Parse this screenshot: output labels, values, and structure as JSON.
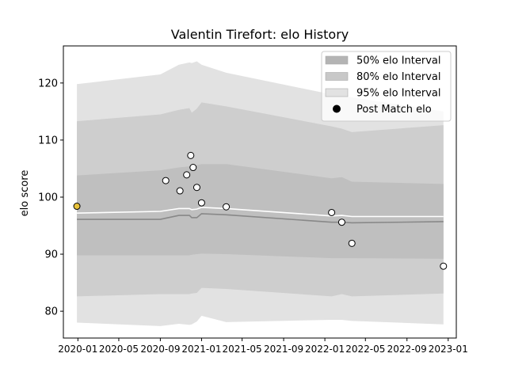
{
  "chart_data": {
    "type": "area",
    "title": "Valentin Tirefort: elo History",
    "xlabel": "",
    "ylabel": "elo score",
    "x_axis_type": "date",
    "xlim": [
      "2019-11-19",
      "2023-01-25"
    ],
    "ylim": [
      75.3,
      126.5
    ],
    "x_ticks": [
      "2020-01",
      "2020-05",
      "2020-09",
      "2021-01",
      "2021-05",
      "2021-09",
      "2022-01",
      "2022-05",
      "2022-09",
      "2023-01"
    ],
    "x_tick_dates": [
      "2020-01-01",
      "2020-05-01",
      "2020-09-01",
      "2021-01-01",
      "2021-05-01",
      "2021-09-01",
      "2022-01-01",
      "2022-05-01",
      "2022-09-01",
      "2023-01-01"
    ],
    "y_ticks": [
      80,
      90,
      100,
      110,
      120
    ],
    "grid": false,
    "legend_position": "top-right",
    "legend": [
      {
        "label": "50% elo Interval",
        "kind": "patch",
        "color": "#b4b4b4"
      },
      {
        "label": "80% elo Interval",
        "kind": "patch",
        "color": "#c8c8c8"
      },
      {
        "label": "95% elo Interval",
        "kind": "patch",
        "color": "#e2e2e2"
      },
      {
        "label": "Post Match elo",
        "kind": "marker",
        "color": "#000000"
      }
    ],
    "colors": {
      "band95": "#e2e2e2",
      "band80": "#cecece",
      "band50": "#bfbfbf",
      "mean_line": "#ffffff",
      "median_line": "#888888",
      "point_fill": "#ffffff",
      "first_point_fill": "#e8c23a",
      "point_edge": "#000000"
    },
    "bands": {
      "dates": [
        "2019-12-29",
        "2020-09-01",
        "2020-10-26",
        "2020-11-26",
        "2020-12-03",
        "2020-12-18",
        "2021-01-01",
        "2021-03-15",
        "2022-01-21",
        "2022-02-20",
        "2022-03-22",
        "2022-12-18"
      ],
      "q95_upper": [
        119.8,
        121.5,
        123.2,
        123.6,
        123.5,
        123.8,
        123.2,
        121.8,
        118.0,
        117.8,
        117.5,
        115.0
      ],
      "q80_upper": [
        113.3,
        114.5,
        115.3,
        115.6,
        114.8,
        115.5,
        116.6,
        115.9,
        112.4,
        112.0,
        111.4,
        112.6
      ],
      "q50_upper": [
        103.8,
        104.7,
        105.2,
        105.4,
        105.2,
        105.6,
        105.8,
        105.8,
        103.3,
        103.5,
        102.7,
        102.3
      ],
      "mean": [
        97.2,
        97.5,
        98.0,
        98.0,
        97.8,
        97.9,
        98.2,
        98.0,
        96.7,
        96.8,
        96.6,
        96.6
      ],
      "median": [
        96.1,
        96.1,
        96.8,
        96.8,
        96.4,
        96.4,
        97.1,
        96.9,
        95.6,
        95.6,
        95.5,
        95.7
      ],
      "q50_lower": [
        89.8,
        89.8,
        89.8,
        89.8,
        89.9,
        90.0,
        90.1,
        90.0,
        89.3,
        89.3,
        89.3,
        89.2
      ],
      "q80_lower": [
        82.6,
        83.0,
        83.0,
        83.0,
        83.1,
        83.2,
        84.1,
        83.9,
        82.6,
        83.0,
        82.6,
        83.1
      ],
      "q95_lower": [
        78.0,
        77.4,
        77.8,
        77.6,
        77.7,
        78.2,
        79.2,
        78.1,
        78.5,
        78.5,
        78.3,
        77.7
      ]
    },
    "series": [
      {
        "name": "Post Match elo",
        "dates": [
          "2019-12-29",
          "2020-09-17",
          "2020-10-29",
          "2020-11-18",
          "2020-11-30",
          "2020-12-07",
          "2020-12-18",
          "2021-01-01",
          "2021-03-15",
          "2022-01-21",
          "2022-02-20",
          "2022-03-22",
          "2022-12-18"
        ],
        "values": [
          98.4,
          102.9,
          101.1,
          103.9,
          107.3,
          105.2,
          101.7,
          99.0,
          98.3,
          97.3,
          95.6,
          91.9,
          87.9
        ]
      }
    ]
  }
}
